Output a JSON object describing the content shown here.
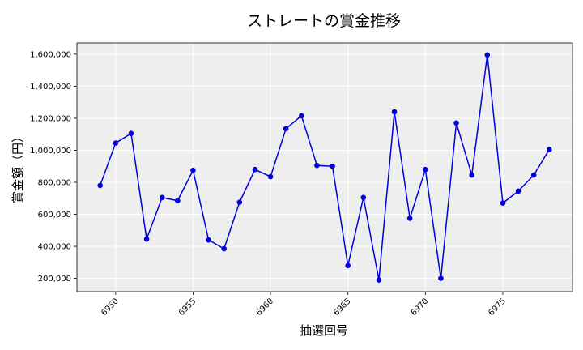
{
  "chart_data": {
    "type": "line",
    "title": "ストレートの賞金推移",
    "xlabel": "抽選回号",
    "ylabel": "賞金額（円）",
    "x": [
      6949,
      6950,
      6951,
      6952,
      6953,
      6954,
      6955,
      6956,
      6957,
      6958,
      6959,
      6960,
      6961,
      6962,
      6963,
      6964,
      6965,
      6966,
      6967,
      6968,
      6969,
      6970,
      6971,
      6972,
      6973,
      6974,
      6975,
      6976,
      6977,
      6978
    ],
    "series": [
      {
        "values": [
          780000,
          1045000,
          1105000,
          445000,
          705000,
          685000,
          875000,
          440000,
          385000,
          675000,
          880000,
          835000,
          1135000,
          1215000,
          905000,
          900000,
          280000,
          705000,
          190000,
          1240000,
          575000,
          880000,
          200000,
          1170000,
          845000,
          1595000,
          670000,
          745000,
          845000,
          1005000
        ],
        "color": "#0000dd"
      }
    ],
    "xticks": [
      "6950",
      "6955",
      "6960",
      "6965",
      "6970",
      "6975"
    ],
    "yticks": [
      "200,000",
      "400,000",
      "600,000",
      "800,000",
      "1,000,000",
      "1,200,000",
      "1,400,000",
      "1,600,000"
    ],
    "xlim": [
      6947.5,
      6979.5
    ],
    "ylim": [
      117000,
      1670000
    ],
    "grid": true,
    "plot_background": "#eeeeee"
  }
}
